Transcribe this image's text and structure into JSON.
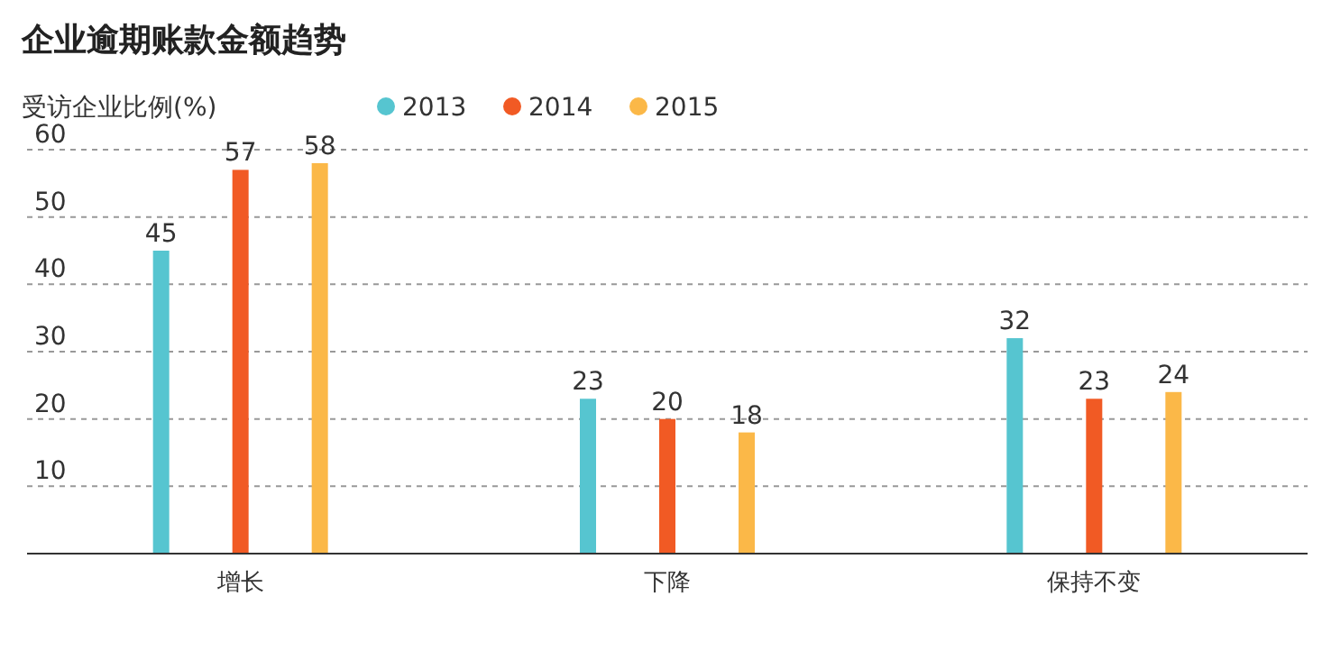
{
  "chart_data": {
    "type": "bar",
    "title": "企业逾期账款金额趋势",
    "ylabel": "受访企业比例(%)",
    "categories": [
      "增长",
      "下降",
      "保持不变"
    ],
    "series": [
      {
        "name": "2013",
        "color": "#56c5d0",
        "values": [
          45,
          23,
          32
        ]
      },
      {
        "name": "2014",
        "color": "#f15a24",
        "values": [
          57,
          20,
          23
        ]
      },
      {
        "name": "2015",
        "color": "#fbb848",
        "values": [
          58,
          18,
          24
        ]
      }
    ],
    "ylim": [
      0,
      60
    ],
    "yticks": [
      {
        "value": 0,
        "label": null
      },
      10,
      20,
      30,
      40,
      50,
      60
    ],
    "grid": "y",
    "legend": "top left",
    "data_labels": true
  }
}
